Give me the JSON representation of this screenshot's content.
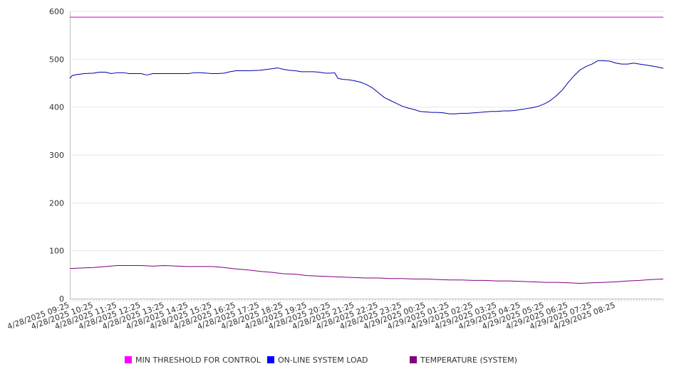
{
  "chart_data": {
    "type": "line",
    "yticks": [
      "0",
      "100",
      "200",
      "300",
      "400",
      "500",
      "600"
    ],
    "ylim": [
      0,
      600
    ],
    "grid": true,
    "legend_position": "bottom",
    "xticks": [
      "4/28/2025 09:25",
      "4/28/2025 10:25",
      "4/28/2025 11:25",
      "4/28/2025 12:25",
      "4/28/2025 13:25",
      "4/28/2025 14:25",
      "4/28/2025 15:25",
      "4/28/2025 16:25",
      "4/28/2025 17:25",
      "4/28/2025 18:25",
      "4/28/2025 19:25",
      "4/28/2025 20:25",
      "4/28/2025 21:25",
      "4/28/2025 22:25",
      "4/28/2025 23:25",
      "4/29/2025 00:25",
      "4/29/2025 01:25",
      "4/29/2025 02:25",
      "4/29/2025 03:25",
      "4/29/2025 04:25",
      "4/29/2025 05:25",
      "4/29/2025 06:25",
      "4/29/2025 07:25",
      "4/29/2025 08:25"
    ],
    "series": [
      {
        "name": "MIN THRESHOLD FOR CONTROL",
        "color": "#cc00cc",
        "swatch": "#ff00ff",
        "points": [
          [
            0,
            588
          ],
          [
            25,
            588
          ]
        ]
      },
      {
        "name": "ON-LINE SYSTEM LOAD",
        "color": "#0000aa",
        "swatch": "#0000ff",
        "points": [
          [
            0,
            460
          ],
          [
            0.1,
            466
          ],
          [
            0.3,
            468
          ],
          [
            0.6,
            470
          ],
          [
            1.0,
            471
          ],
          [
            1.25,
            473
          ],
          [
            1.5,
            473
          ],
          [
            1.75,
            470
          ],
          [
            2.0,
            472
          ],
          [
            2.25,
            472
          ],
          [
            2.5,
            470
          ],
          [
            2.75,
            470
          ],
          [
            3.0,
            470
          ],
          [
            3.25,
            467
          ],
          [
            3.5,
            470
          ],
          [
            4.0,
            470
          ],
          [
            4.5,
            470
          ],
          [
            5.0,
            470
          ],
          [
            5.25,
            472
          ],
          [
            5.5,
            472
          ],
          [
            6.0,
            470
          ],
          [
            6.25,
            470
          ],
          [
            6.5,
            471
          ],
          [
            6.75,
            474
          ],
          [
            7.0,
            476
          ],
          [
            7.25,
            476
          ],
          [
            7.5,
            476
          ],
          [
            8.0,
            477
          ],
          [
            8.5,
            480
          ],
          [
            8.75,
            482
          ],
          [
            9.0,
            479
          ],
          [
            9.25,
            477
          ],
          [
            9.5,
            476
          ],
          [
            9.75,
            474
          ],
          [
            10.0,
            474
          ],
          [
            10.25,
            474
          ],
          [
            10.5,
            473
          ],
          [
            10.75,
            471
          ],
          [
            11.0,
            471
          ],
          [
            11.15,
            472
          ],
          [
            11.3,
            460
          ],
          [
            11.5,
            458
          ],
          [
            11.75,
            457
          ],
          [
            12.0,
            455
          ],
          [
            12.25,
            452
          ],
          [
            12.5,
            447
          ],
          [
            12.75,
            440
          ],
          [
            13.0,
            430
          ],
          [
            13.25,
            420
          ],
          [
            13.5,
            414
          ],
          [
            13.75,
            408
          ],
          [
            14.0,
            402
          ],
          [
            14.25,
            398
          ],
          [
            14.5,
            395
          ],
          [
            14.75,
            391
          ],
          [
            15.0,
            390
          ],
          [
            15.25,
            389
          ],
          [
            15.5,
            389
          ],
          [
            15.75,
            388
          ],
          [
            16.0,
            386
          ],
          [
            16.25,
            386
          ],
          [
            16.5,
            387
          ],
          [
            16.75,
            387
          ],
          [
            17.0,
            388
          ],
          [
            17.25,
            389
          ],
          [
            17.5,
            390
          ],
          [
            17.75,
            391
          ],
          [
            18.0,
            391
          ],
          [
            18.25,
            392
          ],
          [
            18.5,
            392
          ],
          [
            18.75,
            393
          ],
          [
            19.0,
            395
          ],
          [
            19.25,
            397
          ],
          [
            19.5,
            399
          ],
          [
            19.75,
            402
          ],
          [
            20.0,
            407
          ],
          [
            20.25,
            414
          ],
          [
            20.5,
            424
          ],
          [
            20.75,
            436
          ],
          [
            21.0,
            452
          ],
          [
            21.25,
            466
          ],
          [
            21.5,
            478
          ],
          [
            21.75,
            485
          ],
          [
            22.0,
            490
          ],
          [
            22.25,
            497
          ],
          [
            22.5,
            497
          ],
          [
            22.75,
            496
          ],
          [
            23.0,
            492
          ],
          [
            23.25,
            490
          ],
          [
            23.5,
            490
          ],
          [
            23.75,
            492
          ],
          [
            24.0,
            490
          ],
          [
            24.25,
            488
          ],
          [
            24.5,
            486
          ],
          [
            24.75,
            484
          ],
          [
            25.0,
            481
          ]
        ]
      },
      {
        "name": "TEMPERATURE (SYSTEM)",
        "color": "#800080",
        "swatch": "#800080",
        "points": [
          [
            0,
            63
          ],
          [
            1.0,
            65
          ],
          [
            2.0,
            69
          ],
          [
            3.0,
            69
          ],
          [
            3.5,
            68
          ],
          [
            4.0,
            69
          ],
          [
            5.0,
            67
          ],
          [
            6.0,
            67
          ],
          [
            6.5,
            65
          ],
          [
            7.0,
            62
          ],
          [
            7.5,
            60
          ],
          [
            8.0,
            57
          ],
          [
            8.5,
            55
          ],
          [
            9.0,
            52
          ],
          [
            9.5,
            51
          ],
          [
            10.0,
            48
          ],
          [
            10.5,
            47
          ],
          [
            11.0,
            46
          ],
          [
            11.5,
            45
          ],
          [
            12.0,
            44
          ],
          [
            12.5,
            43
          ],
          [
            13.0,
            43
          ],
          [
            13.5,
            42
          ],
          [
            14.0,
            42
          ],
          [
            14.5,
            41
          ],
          [
            15.0,
            41
          ],
          [
            15.5,
            40
          ],
          [
            16.0,
            39
          ],
          [
            16.5,
            39
          ],
          [
            17.0,
            38
          ],
          [
            17.5,
            38
          ],
          [
            18.0,
            37
          ],
          [
            18.5,
            37
          ],
          [
            19.0,
            36
          ],
          [
            19.5,
            35
          ],
          [
            20.0,
            34
          ],
          [
            20.5,
            34
          ],
          [
            21.0,
            33
          ],
          [
            21.5,
            32
          ],
          [
            22.0,
            33
          ],
          [
            22.5,
            34
          ],
          [
            23.0,
            35
          ],
          [
            23.5,
            37
          ],
          [
            24.0,
            38
          ],
          [
            24.5,
            40
          ],
          [
            25.0,
            41
          ]
        ]
      }
    ]
  }
}
